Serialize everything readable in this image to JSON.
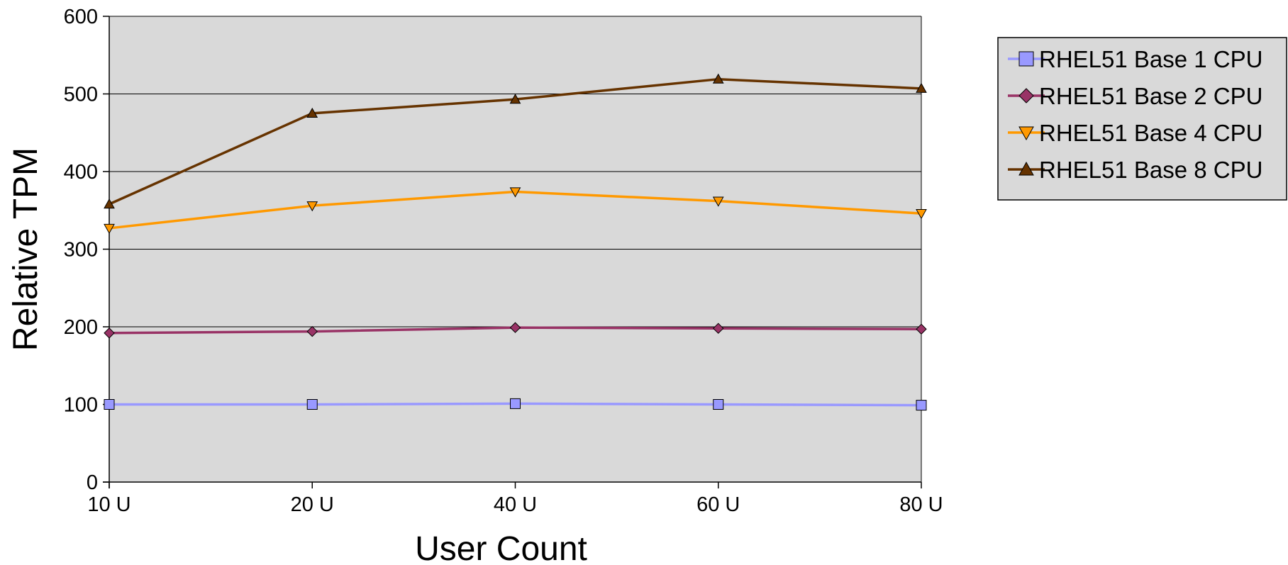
{
  "chart_data": {
    "type": "line",
    "categories": [
      "10 U",
      "20 U",
      "40 U",
      "60 U",
      "80 U"
    ],
    "xlabel": "User Count",
    "ylabel": "Relative TPM",
    "ylim": [
      0,
      600
    ],
    "yticks": [
      "0",
      "100",
      "200",
      "300",
      "400",
      "500",
      "600"
    ],
    "grid": true,
    "legend_position": "right",
    "plot_background": "#d9d9d9",
    "series": [
      {
        "name": "RHEL51 Base 1 CPU",
        "marker": "square",
        "color": "#9999ff",
        "values": [
          100,
          100,
          101,
          100,
          99
        ]
      },
      {
        "name": "RHEL51 Base 2 CPU",
        "marker": "diamond",
        "color": "#993366",
        "values": [
          192,
          194,
          199,
          198,
          197
        ]
      },
      {
        "name": "RHEL51 Base 4 CPU",
        "marker": "triangle-down",
        "color": "#ff9900",
        "values": [
          327,
          356,
          374,
          362,
          346
        ]
      },
      {
        "name": "RHEL51 Base 8 CPU",
        "marker": "triangle-up",
        "color": "#663300",
        "values": [
          358,
          475,
          493,
          519,
          507
        ]
      }
    ]
  }
}
